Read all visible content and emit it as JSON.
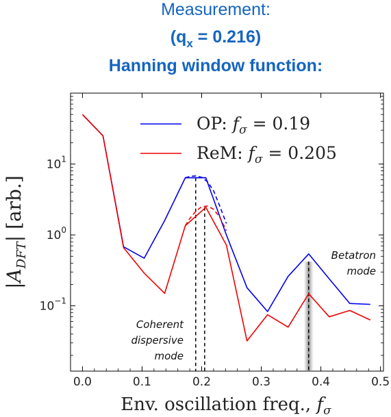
{
  "chart_data": {
    "type": "line",
    "title": {
      "line1": "Measurement:",
      "line2_prefix": "(q",
      "line2_subscript": "x",
      "line2_suffix": " = 0.216)",
      "line3": "Hanning window function:",
      "color": "#1565c0"
    },
    "xlabel": {
      "text": "Env. oscillation freq., ",
      "symbol": "f",
      "subscript": "σ"
    },
    "ylabel": {
      "pre": "|A",
      "subscript": "DFT",
      "post": "| [arb.]"
    },
    "xlim": [
      -0.02,
      0.505
    ],
    "ylim": [
      0.012,
      100
    ],
    "yscale": "log",
    "x_ticks": [
      0.0,
      0.1,
      0.2,
      0.3,
      0.4,
      0.5
    ],
    "x_tick_labels": [
      "0.0",
      "0.1",
      "0.2",
      "0.3",
      "0.4",
      "0.5"
    ],
    "y_ticks": [
      {
        "value": 10,
        "base": "10",
        "exp": "1"
      },
      {
        "value": 1,
        "base": "10",
        "exp": "0"
      },
      {
        "value": 0.1,
        "base": "10",
        "exp": "−1"
      }
    ],
    "grid": false,
    "legend_position": "top-right",
    "series": [
      {
        "name_prefix": "OP: ",
        "name_value": " =  0.19",
        "color": "#0000ee",
        "x": [
          0.0,
          0.0345,
          0.069,
          0.1035,
          0.138,
          0.1725,
          0.207,
          0.2415,
          0.276,
          0.3105,
          0.345,
          0.3795,
          0.414,
          0.4485,
          0.483
        ],
        "y": [
          50,
          25,
          0.68,
          0.47,
          1.6,
          6.4,
          6.4,
          1.0,
          0.18,
          0.083,
          0.26,
          0.54,
          0.24,
          0.108,
          0.105
        ]
      },
      {
        "name_prefix": "ReM: ",
        "name_value": " =  0.205",
        "color": "#ee0000",
        "x": [
          0.0,
          0.0345,
          0.069,
          0.1035,
          0.138,
          0.1725,
          0.207,
          0.2415,
          0.276,
          0.3105,
          0.345,
          0.3795,
          0.414,
          0.4485,
          0.483
        ],
        "y": [
          50,
          25,
          0.66,
          0.29,
          0.15,
          1.35,
          2.45,
          0.72,
          0.032,
          0.075,
          0.05,
          0.148,
          0.07,
          0.086,
          0.063
        ]
      }
    ],
    "fits": [
      {
        "color": "#0000ee",
        "x": [
          0.1725,
          0.18,
          0.19,
          0.2,
          0.21,
          0.22,
          0.23,
          0.2415
        ],
        "y": [
          6.4,
          6.7,
          6.8,
          6.5,
          5.6,
          4.2,
          2.6,
          1.45
        ]
      },
      {
        "color": "#ee0000",
        "x": [
          0.1725,
          0.18,
          0.19,
          0.2,
          0.21,
          0.22,
          0.23,
          0.2415
        ],
        "y": [
          1.35,
          1.7,
          2.15,
          2.5,
          2.55,
          2.3,
          1.8,
          1.15
        ]
      }
    ],
    "vertical_markers": [
      {
        "x": 0.19,
        "y_top": 6.4
      },
      {
        "x": 0.205,
        "y_top": 2.45
      },
      {
        "x": 0.3795,
        "y_top": 0.42,
        "shaded": true
      }
    ],
    "annotations": {
      "coherent": [
        "Coherent",
        "dispersive",
        "mode"
      ],
      "betatron": [
        "Betatron",
        "mode"
      ]
    }
  }
}
